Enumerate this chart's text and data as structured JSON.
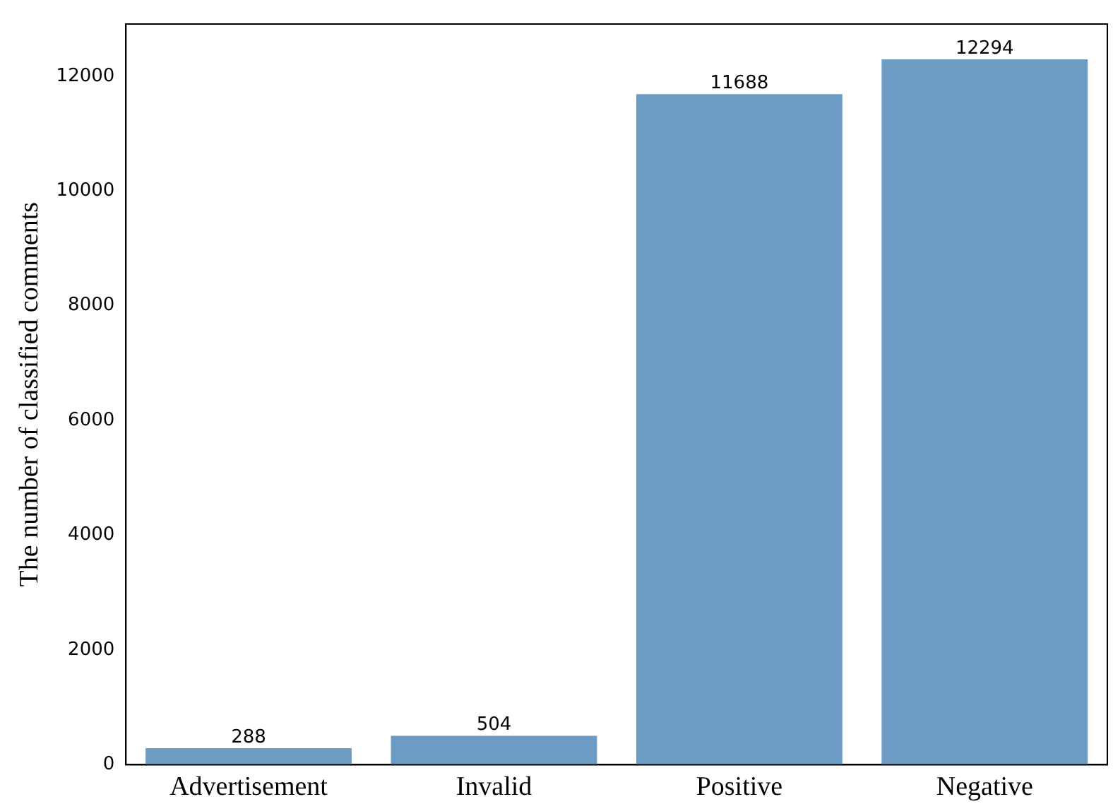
{
  "chart_data": {
    "type": "bar",
    "ylabel": "The number of classified comments",
    "categories": [
      "Advertisement",
      "Invalid",
      "Positive",
      "Negative"
    ],
    "values": [
      288,
      504,
      11688,
      12294
    ],
    "color": "#6c9bc4",
    "ylim": [
      0,
      12909
    ],
    "yticks": [
      0,
      2000,
      4000,
      6000,
      8000,
      10000,
      12000
    ],
    "grid": false,
    "data_labels": true,
    "legend": false
  }
}
